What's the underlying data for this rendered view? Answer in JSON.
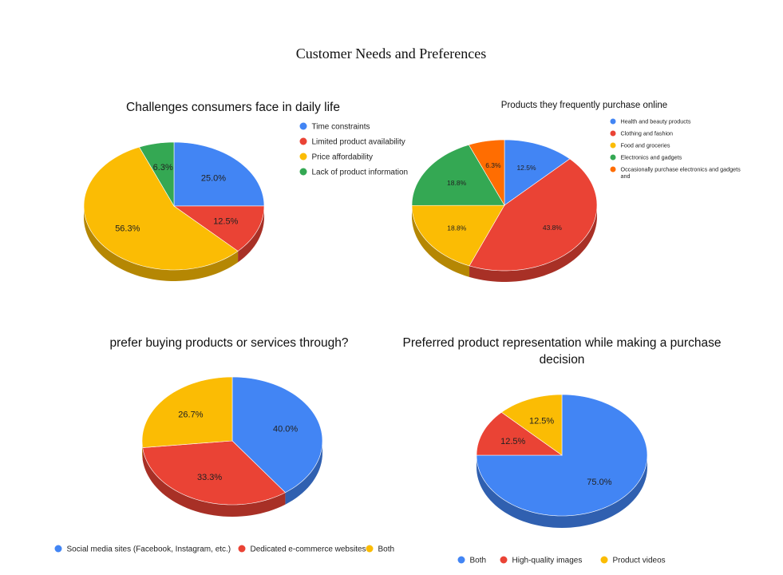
{
  "page_title": "Customer Needs and Preferences",
  "chart_data": [
    {
      "type": "pie",
      "style": "3d",
      "title": "Challenges consumers face in daily life",
      "legend_position": "right",
      "slices": [
        {
          "label": "Time constraints",
          "value": 25.0,
          "display": "25.0%",
          "color": "#4285f4"
        },
        {
          "label": "Limited product availability",
          "value": 12.5,
          "display": "12.5%",
          "color": "#ea4335"
        },
        {
          "label": "Price affordability",
          "value": 56.3,
          "display": "56.3%",
          "color": "#fbbc04"
        },
        {
          "label": "Lack of product information",
          "value": 6.3,
          "display": "6.3%",
          "color": "#34a853"
        }
      ]
    },
    {
      "type": "pie",
      "style": "3d",
      "title": "Products they frequently purchase online",
      "legend_position": "right",
      "slices": [
        {
          "label": "Health and beauty products",
          "value": 12.5,
          "display": "12.5%",
          "color": "#4285f4"
        },
        {
          "label": "Clothing and fashion",
          "value": 43.8,
          "display": "43.8%",
          "color": "#ea4335"
        },
        {
          "label": "Food and groceries",
          "value": 18.8,
          "display": "18.8%",
          "color": "#fbbc04"
        },
        {
          "label": "Electronics and gadgets",
          "value": 18.8,
          "display": "18.8%",
          "color": "#34a853"
        },
        {
          "label": "Occasionally purchase electronics and gadgets and",
          "value": 6.3,
          "display": "6.3%",
          "color": "#ff6d01"
        }
      ]
    },
    {
      "type": "pie",
      "style": "3d",
      "title": "prefer buying products or services through?",
      "legend_position": "bottom",
      "slices": [
        {
          "label": "Social media sites (Facebook, Instagram, etc.)",
          "value": 40.0,
          "display": "40.0%",
          "color": "#4285f4"
        },
        {
          "label": "Dedicated e-commerce websites",
          "value": 33.3,
          "display": "33.3%",
          "color": "#ea4335"
        },
        {
          "label": "Both",
          "value": 26.7,
          "display": "26.7%",
          "color": "#fbbc04"
        }
      ]
    },
    {
      "type": "pie",
      "style": "3d",
      "title": "Preferred product representation while making a purchase decision",
      "title_lines": [
        "Preferred product representation while making a purchase",
        "decision"
      ],
      "legend_position": "bottom",
      "slices": [
        {
          "label": "Both",
          "value": 75.0,
          "display": "75.0%",
          "color": "#4285f4"
        },
        {
          "label": "High-quality images",
          "value": 12.5,
          "display": "12.5%",
          "color": "#ea4335"
        },
        {
          "label": "Product videos",
          "value": 12.5,
          "display": "12.5%",
          "color": "#fbbc04"
        }
      ]
    }
  ]
}
